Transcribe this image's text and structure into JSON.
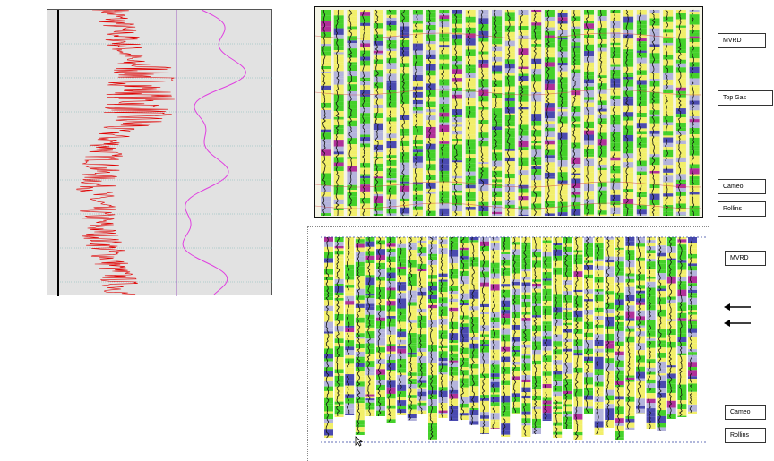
{
  "panels": {
    "log_panel": {
      "name": "well log curves"
    },
    "top_section": {
      "labels": [
        "MVRD",
        "Top Gas",
        "Cameo",
        "Rollins"
      ]
    },
    "bottom_section": {
      "labels": [
        "MVRD",
        "Cameo",
        "Rollins"
      ],
      "arrow_count": 2
    }
  },
  "colors": {
    "log_red": "#e00000",
    "log_magenta": "#e040e0",
    "yellow": "#f2ef6a",
    "green": "#44d12a",
    "lavender": "#b4b4dc",
    "blue": "#4a4ab0",
    "magenta": "#b0309a"
  }
}
